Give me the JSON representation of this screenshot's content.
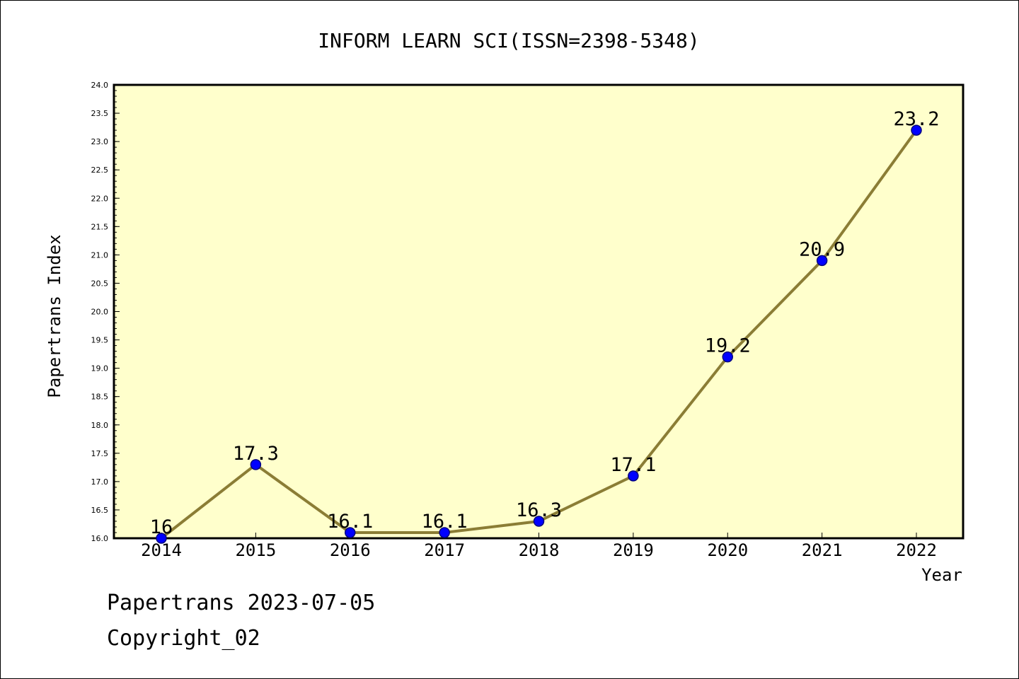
{
  "colors": {
    "plot_background": "#ffffcc",
    "line": "#8b7d35",
    "marker_fill": "#0000ff",
    "marker_edge": "#000080",
    "frame": "#000000"
  },
  "chart_data": {
    "type": "line",
    "title": "INFORM LEARN SCI(ISSN=2398-5348)",
    "xlabel": "Year",
    "ylabel": "Papertrans Index",
    "categories": [
      "2014",
      "2015",
      "2016",
      "2017",
      "2018",
      "2019",
      "2020",
      "2021",
      "2022"
    ],
    "series": [
      {
        "values": [
          16,
          17.3,
          16.1,
          16.1,
          16.3,
          17.1,
          19.2,
          20.9,
          23.2
        ],
        "data_labels": [
          "16",
          "17.3",
          "16.1",
          "16.1",
          "16.3",
          "17.1",
          "19.2",
          "20.9",
          "23.2"
        ]
      }
    ],
    "ylim": [
      16.0,
      24.0
    ],
    "yticks": [
      "16.0",
      "16.5",
      "17.0",
      "17.5",
      "18.0",
      "18.5",
      "19.0",
      "19.5",
      "20.0",
      "20.5",
      "21.0",
      "21.5",
      "22.0",
      "22.5",
      "23.0",
      "23.5",
      "24.0"
    ],
    "grid": false,
    "legend": "none"
  },
  "footer": {
    "line1": "Papertrans 2023-07-05",
    "line2": "Copyright_02"
  }
}
